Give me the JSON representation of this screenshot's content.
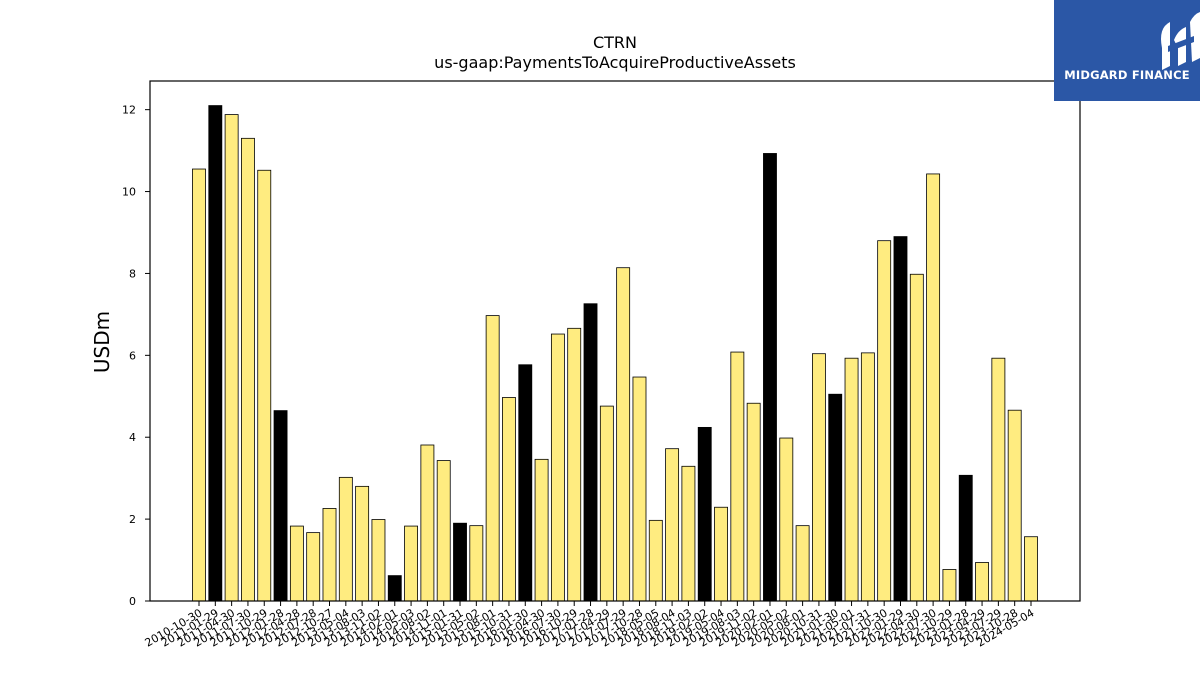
{
  "chart_data": {
    "type": "bar",
    "title": "CTRN",
    "subtitle": "us-gaap:PaymentsToAcquireProductiveAssets",
    "xlabel": "",
    "ylabel": "USDm",
    "ylim": [
      0,
      12.7
    ],
    "yticks": [
      0,
      2,
      4,
      6,
      8,
      10,
      12
    ],
    "grid": false,
    "categories": [
      "2010-10-30",
      "2011-01-29",
      "2011-04-30",
      "2011-07-30",
      "2011-10-29",
      "2012-01-28",
      "2012-04-28",
      "2012-07-28",
      "2012-10-27",
      "2013-05-04",
      "2013-08-03",
      "2013-11-02",
      "2014-02-01",
      "2014-05-03",
      "2014-08-02",
      "2014-11-01",
      "2015-01-31",
      "2015-05-02",
      "2015-08-01",
      "2015-10-31",
      "2016-01-30",
      "2016-04-30",
      "2016-07-30",
      "2016-10-29",
      "2017-01-28",
      "2017-04-29",
      "2017-07-29",
      "2017-10-28",
      "2018-05-05",
      "2018-08-04",
      "2018-11-03",
      "2019-02-02",
      "2019-05-04",
      "2019-08-03",
      "2019-11-02",
      "2020-02-01",
      "2020-05-02",
      "2020-08-01",
      "2020-10-31",
      "2021-01-30",
      "2021-05-01",
      "2021-07-31",
      "2021-10-30",
      "2022-01-29",
      "2022-04-30",
      "2022-07-30",
      "2022-10-29",
      "2023-01-28",
      "2023-04-29",
      "2023-07-29",
      "2023-10-28",
      "2024-05-04"
    ],
    "values": [
      10.55,
      12.1,
      11.88,
      11.3,
      10.52,
      4.65,
      1.83,
      1.67,
      2.26,
      3.02,
      2.8,
      1.99,
      0.62,
      1.83,
      3.81,
      3.43,
      1.9,
      1.84,
      6.97,
      4.97,
      5.77,
      3.46,
      6.52,
      6.66,
      7.26,
      4.76,
      8.14,
      5.47,
      1.97,
      3.72,
      3.29,
      4.24,
      2.29,
      6.08,
      4.83,
      10.93,
      3.98,
      1.84,
      6.04,
      5.05,
      5.93,
      6.06,
      8.8,
      8.9,
      7.98,
      10.43,
      0.77,
      3.07,
      0.94,
      5.93,
      4.66,
      1.57
    ],
    "highlight": [
      false,
      true,
      false,
      false,
      false,
      true,
      false,
      false,
      false,
      false,
      false,
      false,
      true,
      false,
      false,
      false,
      true,
      false,
      false,
      false,
      true,
      false,
      false,
      false,
      true,
      false,
      false,
      false,
      false,
      false,
      false,
      true,
      false,
      false,
      false,
      true,
      false,
      false,
      false,
      true,
      false,
      false,
      false,
      true,
      false,
      false,
      false,
      true,
      false,
      false,
      false,
      false
    ],
    "colors": {
      "bar": "#ffec80",
      "highlight_bar": "#000000",
      "edge": "#000000"
    }
  },
  "logo": {
    "text": "MIDGARD FINANCE",
    "bg": "#2b57a6"
  }
}
